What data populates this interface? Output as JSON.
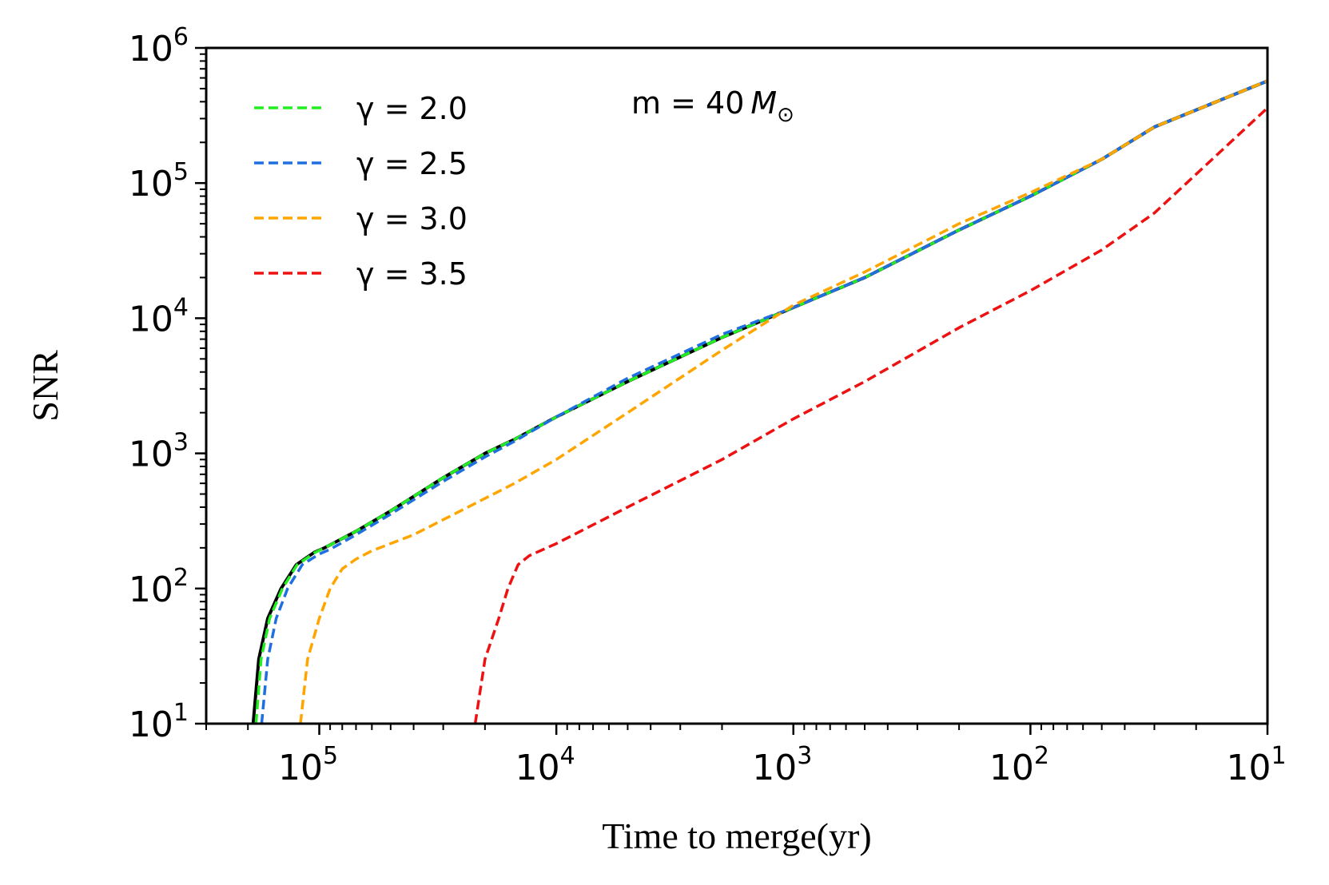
{
  "chart_data": {
    "type": "line",
    "title": "",
    "xlabel": "Time to merge(yr)",
    "ylabel": "SNR",
    "xscale": "log",
    "yscale": "log",
    "x_reversed": true,
    "xlim": [
      300000,
      10
    ],
    "ylim": [
      10,
      1000000
    ],
    "x_ticks": [
      {
        "value": 100000,
        "base": "10",
        "exp": "5"
      },
      {
        "value": 10000,
        "base": "10",
        "exp": "4"
      },
      {
        "value": 1000,
        "base": "10",
        "exp": "3"
      },
      {
        "value": 100,
        "base": "10",
        "exp": "2"
      },
      {
        "value": 10,
        "base": "10",
        "exp": "1"
      }
    ],
    "y_ticks": [
      {
        "value": 10,
        "base": "10",
        "exp": "1"
      },
      {
        "value": 100,
        "base": "10",
        "exp": "2"
      },
      {
        "value": 1000,
        "base": "10",
        "exp": "3"
      },
      {
        "value": 10000,
        "base": "10",
        "exp": "4"
      },
      {
        "value": 100000,
        "base": "10",
        "exp": "5"
      },
      {
        "value": 1000000,
        "base": "10",
        "exp": "6"
      }
    ],
    "annotation": {
      "text": "m = 40",
      "math": "M",
      "sub": "⊙"
    },
    "legend_location": "upper-left",
    "series": [
      {
        "name": "baseline",
        "legend": false,
        "color": "#000000",
        "dash": "solid",
        "points": [
          [
            190000,
            10
          ],
          [
            180000,
            30
          ],
          [
            165000,
            60
          ],
          [
            145000,
            100
          ],
          [
            125000,
            150
          ],
          [
            105000,
            185
          ],
          [
            95000,
            200
          ],
          [
            70000,
            265
          ],
          [
            50000,
            375
          ],
          [
            30000,
            660
          ],
          [
            20000,
            1000
          ],
          [
            15000,
            1270
          ],
          [
            10000,
            1860
          ],
          [
            5000,
            3400
          ],
          [
            2000,
            7200
          ],
          [
            1000,
            12000
          ],
          [
            500,
            20000
          ],
          [
            200,
            45000
          ],
          [
            100,
            80000
          ],
          [
            50,
            150000
          ],
          [
            30,
            260000
          ],
          [
            10,
            570000
          ]
        ]
      },
      {
        "name": "γ = 2.0",
        "legend": true,
        "color": "#22ee22",
        "dash": "dashed",
        "points": [
          [
            185000,
            10
          ],
          [
            176000,
            30
          ],
          [
            162000,
            60
          ],
          [
            143000,
            100
          ],
          [
            124000,
            150
          ],
          [
            104000,
            185
          ],
          [
            95000,
            200
          ],
          [
            70000,
            265
          ],
          [
            50000,
            375
          ],
          [
            30000,
            660
          ],
          [
            20000,
            1000
          ],
          [
            15000,
            1270
          ],
          [
            10000,
            1860
          ],
          [
            5000,
            3400
          ],
          [
            2000,
            7200
          ],
          [
            1000,
            12000
          ],
          [
            500,
            20000
          ],
          [
            200,
            45000
          ],
          [
            100,
            80000
          ],
          [
            50,
            150000
          ],
          [
            30,
            260000
          ],
          [
            10,
            570000
          ]
        ]
      },
      {
        "name": "γ = 2.5",
        "legend": true,
        "color": "#1f6fe0",
        "dash": "dashed",
        "points": [
          [
            175000,
            10
          ],
          [
            165000,
            30
          ],
          [
            152000,
            60
          ],
          [
            136000,
            100
          ],
          [
            118000,
            150
          ],
          [
            100000,
            180
          ],
          [
            90000,
            195
          ],
          [
            70000,
            250
          ],
          [
            50000,
            355
          ],
          [
            30000,
            620
          ],
          [
            20000,
            940
          ],
          [
            15000,
            1230
          ],
          [
            10000,
            1860
          ],
          [
            5000,
            3600
          ],
          [
            2000,
            7600
          ],
          [
            1000,
            12000
          ],
          [
            500,
            20000
          ],
          [
            200,
            45000
          ],
          [
            100,
            80000
          ],
          [
            50,
            150000
          ],
          [
            30,
            260000
          ],
          [
            10,
            570000
          ]
        ]
      },
      {
        "name": "γ = 3.0",
        "legend": true,
        "color": "#ffa500",
        "dash": "dashed",
        "points": [
          [
            120000,
            10
          ],
          [
            112000,
            30
          ],
          [
            100000,
            60
          ],
          [
            90000,
            100
          ],
          [
            80000,
            140
          ],
          [
            70000,
            165
          ],
          [
            60000,
            190
          ],
          [
            40000,
            250
          ],
          [
            25000,
            380
          ],
          [
            15000,
            600
          ],
          [
            10000,
            900
          ],
          [
            5000,
            2000
          ],
          [
            2000,
            5800
          ],
          [
            1000,
            12500
          ],
          [
            500,
            22000
          ],
          [
            200,
            50000
          ],
          [
            100,
            85000
          ],
          [
            50,
            150000
          ],
          [
            30,
            260000
          ],
          [
            10,
            570000
          ]
        ]
      },
      {
        "name": "γ = 3.5",
        "legend": true,
        "color": "#ee1111",
        "dash": "dashed",
        "points": [
          [
            22000,
            10
          ],
          [
            20000,
            30
          ],
          [
            17500,
            60
          ],
          [
            16000,
            100
          ],
          [
            14500,
            150
          ],
          [
            13000,
            175
          ],
          [
            10000,
            215
          ],
          [
            5000,
            400
          ],
          [
            2000,
            900
          ],
          [
            1000,
            1800
          ],
          [
            500,
            3400
          ],
          [
            200,
            8500
          ],
          [
            100,
            16000
          ],
          [
            50,
            32000
          ],
          [
            30,
            60000
          ],
          [
            10,
            360000
          ]
        ]
      }
    ]
  }
}
